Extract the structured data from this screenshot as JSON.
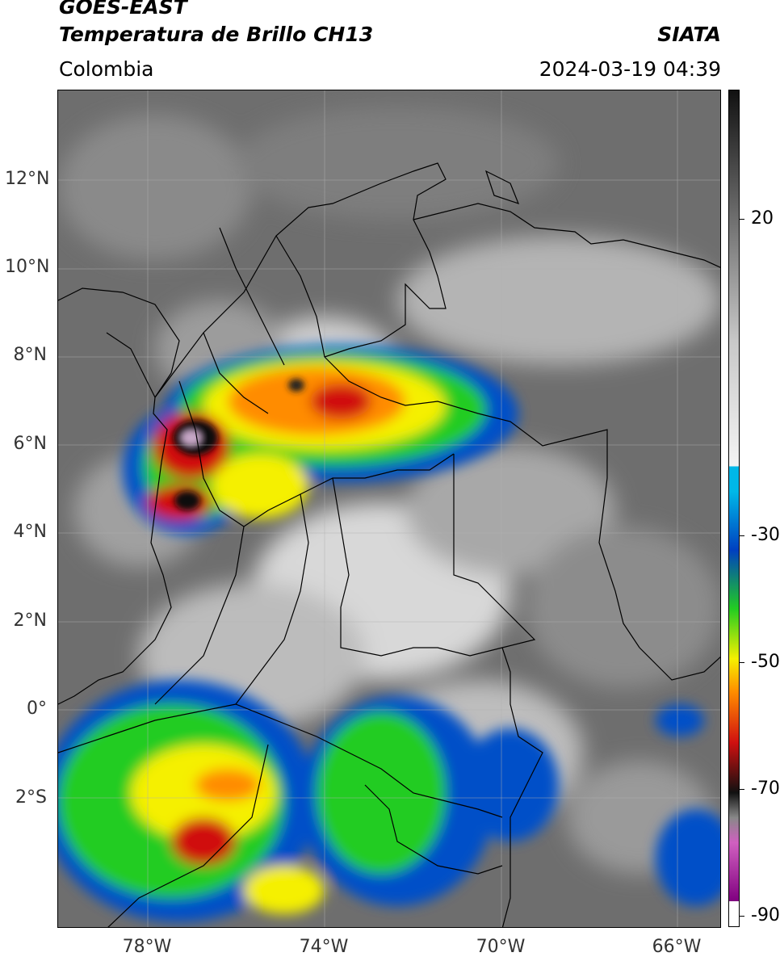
{
  "header": {
    "satellite": "GOES-EAST",
    "product": "Temperatura de Brillo CH13",
    "credit": "SIATA",
    "region": "Colombia",
    "datetime": "2024-03-19 04:39"
  },
  "axes": {
    "lat_ticks": [
      "12°N",
      "10°N",
      "8°N",
      "6°N",
      "4°N",
      "2°N",
      "0°",
      "2°S"
    ],
    "lon_ticks": [
      "78°W",
      "74°W",
      "70°W",
      "66°W"
    ]
  },
  "colorbar": {
    "ticks": [
      "20",
      "-30",
      "-50",
      "-70",
      "-90"
    ],
    "colors": {
      "cold_black": "#111111",
      "red": "#d01010",
      "orange": "#ff8c00",
      "yellow": "#f5f000",
      "green": "#22cc22",
      "blue": "#0040c0",
      "cyan": "#00b8e8",
      "white": "#f4f4f4",
      "warm_gray": "#5a5a5a",
      "magenta": "#d060c0",
      "purple": "#800080"
    }
  }
}
